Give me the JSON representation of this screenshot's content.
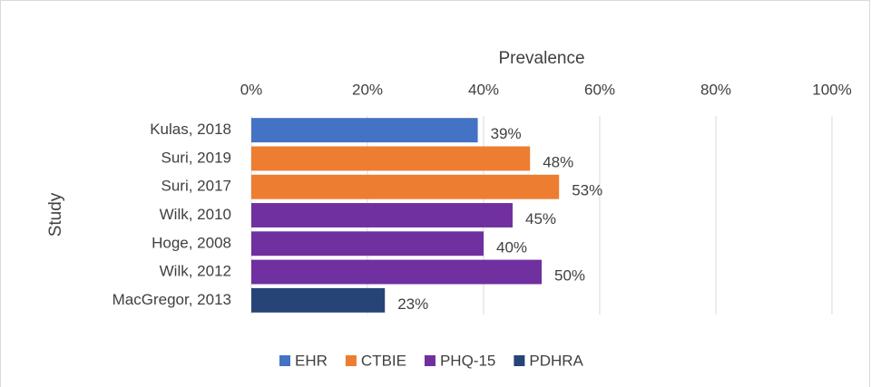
{
  "chart_data": {
    "type": "bar",
    "orientation": "horizontal",
    "x_label": "Prevalence",
    "y_label": "Study",
    "categories": [
      "Kulas, 2018",
      "Suri, 2019",
      "Suri, 2017",
      "Wilk, 2010",
      "Hoge, 2008",
      "Wilk, 2012",
      "MacGregor, 2013"
    ],
    "series": [
      {
        "name": "EHR",
        "color": "#4472c4",
        "values": [
          39,
          null,
          null,
          null,
          null,
          null,
          null
        ],
        "value_labels": [
          "39%",
          null,
          null,
          null,
          null,
          null,
          null
        ]
      },
      {
        "name": "CTBIE",
        "color": "#ed7d31",
        "values": [
          null,
          48,
          53,
          null,
          null,
          null,
          null
        ],
        "value_labels": [
          null,
          "48%",
          "53%",
          null,
          null,
          null,
          null
        ]
      },
      {
        "name": "PHQ-15",
        "color": "#7030a0",
        "values": [
          null,
          null,
          null,
          45,
          40,
          50,
          null
        ],
        "value_labels": [
          null,
          null,
          null,
          "45%",
          "40%",
          "50%",
          null
        ]
      },
      {
        "name": "PDHRA",
        "color": "#264478",
        "values": [
          null,
          null,
          null,
          null,
          null,
          null,
          23
        ],
        "value_labels": [
          null,
          null,
          null,
          null,
          null,
          null,
          "23%"
        ]
      }
    ],
    "xlim": [
      0,
      100
    ],
    "xticks": [
      {
        "value": 0,
        "label": "0%"
      },
      {
        "value": 20,
        "label": "20%"
      },
      {
        "value": 40,
        "label": "40%"
      },
      {
        "value": 60,
        "label": "60%"
      },
      {
        "value": 80,
        "label": "80%"
      },
      {
        "value": 100,
        "label": "100%"
      }
    ],
    "grid": true,
    "legend": "bottom"
  }
}
